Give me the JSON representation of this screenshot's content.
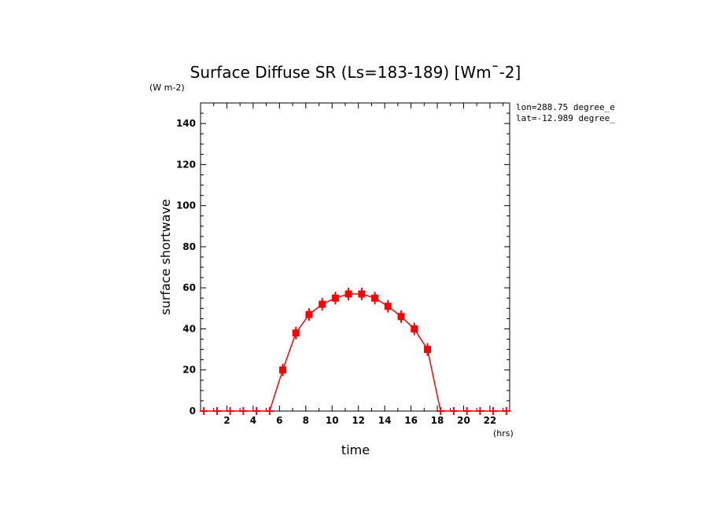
{
  "chart_data": {
    "type": "line",
    "title": "Surface Diffuse SR (Ls=183-189) [Wm¯-2]",
    "units_label": "(W m-2)",
    "xlabel": "time",
    "x_units_label": "(hrs)",
    "ylabel": "surface shortwave",
    "xlim": [
      0,
      23.5
    ],
    "ylim": [
      0,
      150
    ],
    "xticks": [
      2,
      4,
      6,
      8,
      10,
      12,
      14,
      16,
      18,
      20,
      22
    ],
    "yticks": [
      0,
      20,
      40,
      60,
      80,
      100,
      120,
      140
    ],
    "annotations": [
      "lon=288.75 degree_e",
      "lat=-12.989 degree_"
    ],
    "line_color": "#ff0000",
    "series": [
      {
        "x": [
          0.25,
          1.25,
          2.25,
          3.25,
          4.25,
          5.25,
          6.25,
          7.25,
          8.25,
          9.25,
          10.25,
          11.25,
          12.25,
          13.25,
          14.25,
          15.25,
          16.25,
          17.25,
          18.25,
          19.25,
          20.25,
          21.25,
          22.25,
          23.25
        ],
        "y": [
          0,
          0,
          0,
          0,
          0,
          0,
          20,
          38,
          47,
          52,
          55,
          57,
          57,
          55,
          51,
          46,
          40,
          30,
          0,
          0,
          0,
          0,
          0,
          0
        ]
      }
    ]
  }
}
